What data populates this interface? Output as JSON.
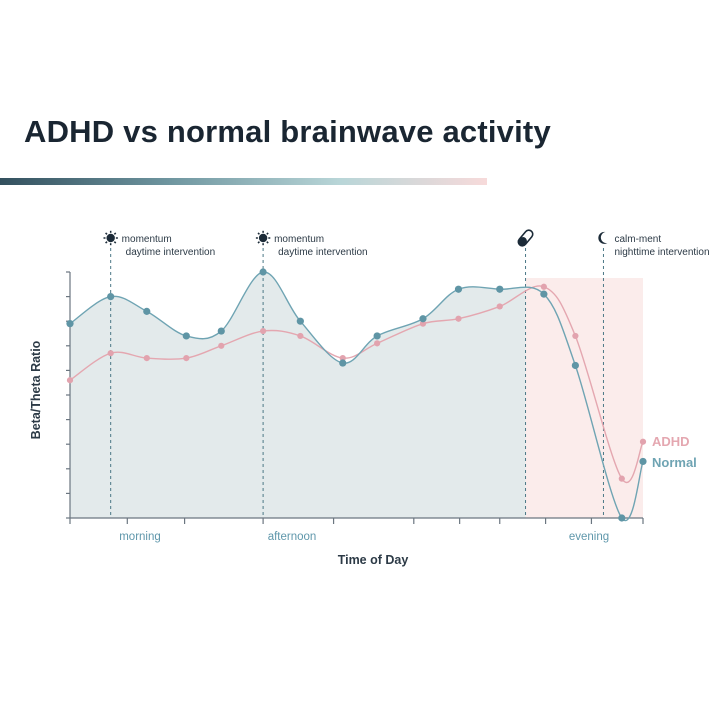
{
  "title": "ADHD vs normal brainwave activity",
  "chart_data": {
    "type": "line",
    "xlabel": "Time of Day",
    "ylabel": "Beta/Theta Ratio",
    "x_categories": [
      "morning",
      "afternoon",
      "evening"
    ],
    "xlim": [
      0,
      100
    ],
    "ylim": [
      0,
      10
    ],
    "series": [
      {
        "name": "ADHD",
        "color": "#e4a7b0",
        "x": [
          0,
          7.1,
          13.4,
          20.3,
          26.4,
          33.7,
          40.2,
          47.6,
          53.6,
          61.6,
          67.8,
          75.0,
          82.7,
          88.2,
          96.3,
          100
        ],
        "y": [
          5.6,
          6.7,
          6.5,
          6.5,
          7.0,
          7.6,
          7.4,
          6.5,
          7.1,
          7.9,
          8.1,
          8.6,
          9.4,
          7.4,
          1.6,
          3.1
        ]
      },
      {
        "name": "Normal",
        "color": "#6fa4b3",
        "x": [
          0,
          7.1,
          13.4,
          20.3,
          26.4,
          33.7,
          40.2,
          47.6,
          53.6,
          61.6,
          67.8,
          75.0,
          82.7,
          88.2,
          96.3,
          100
        ],
        "y": [
          7.9,
          9.0,
          8.4,
          7.4,
          7.6,
          10.0,
          8.0,
          6.3,
          7.4,
          8.1,
          9.3,
          9.3,
          9.1,
          6.2,
          0,
          2.3
        ]
      }
    ],
    "annotations": [
      {
        "x": 7.1,
        "icon": "sun-icon",
        "line1": "momentum",
        "line2": "daytime intervention"
      },
      {
        "x": 33.7,
        "icon": "sun-icon",
        "line1": "momentum",
        "line2": "daytime intervention"
      },
      {
        "x": 79.5,
        "icon": "pill-icon",
        "line1": "",
        "line2": ""
      },
      {
        "x": 93.1,
        "icon": "moon-icon",
        "line1": "calm-ment",
        "line2": "nighttime intervention"
      }
    ],
    "shaded_regions": [
      {
        "from": 0,
        "to": 79.5,
        "color": "#e3eaeb"
      },
      {
        "from": 79.5,
        "to": 100,
        "color": "#fbeceb"
      }
    ],
    "legend": {
      "position": "right",
      "items": [
        "ADHD",
        "Normal"
      ]
    }
  }
}
